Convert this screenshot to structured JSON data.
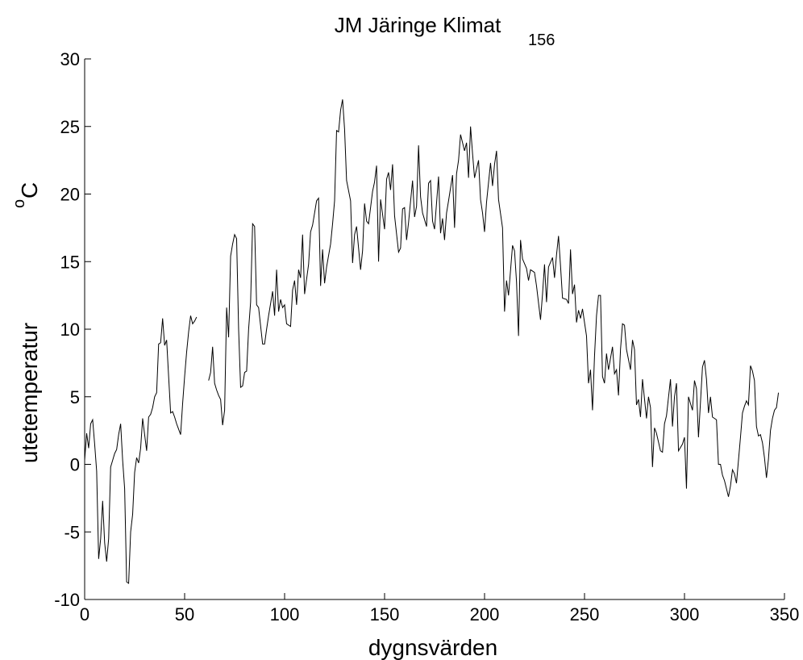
{
  "chart_data": {
    "type": "line",
    "title": "JM Järinge  Klimat",
    "title_subscript": "156",
    "xlabel": "dygnsvärden",
    "ylabel": "utetemperatur",
    "ylabel_unit_superscript": "o",
    "ylabel_unit": "C",
    "xlim": [
      0,
      350
    ],
    "xticks": [
      0,
      50,
      100,
      150,
      200,
      250,
      300,
      350
    ],
    "ylim": [
      -10,
      30
    ],
    "yticks": [
      -10,
      -5,
      0,
      5,
      10,
      15,
      20,
      25,
      30
    ],
    "grid": false,
    "x": [
      0,
      1,
      2,
      3,
      4,
      5,
      6,
      7,
      8,
      9,
      10,
      11,
      12,
      13,
      14,
      15,
      16,
      17,
      18,
      19,
      20,
      21,
      22,
      23,
      24,
      25,
      26,
      27,
      28,
      29,
      30,
      31,
      32,
      33,
      34,
      35,
      36,
      37,
      38,
      39,
      40,
      41,
      42,
      43,
      44,
      45,
      46,
      47,
      48,
      49,
      50,
      51,
      52,
      53,
      54,
      55,
      56,
      57,
      58,
      59,
      60,
      61,
      62,
      63,
      64,
      65,
      66,
      67,
      68,
      69,
      70,
      71,
      72,
      73,
      74,
      75,
      76,
      77,
      78,
      79,
      80,
      81,
      82,
      83,
      84,
      85,
      86,
      87,
      89,
      90,
      91,
      92,
      94,
      95,
      96,
      97,
      98,
      99,
      100,
      101,
      103,
      104,
      105,
      106,
      107,
      108,
      109,
      110,
      112,
      113,
      114,
      116,
      117,
      118,
      119,
      120,
      121,
      123,
      124,
      125,
      126,
      127,
      128,
      129,
      130,
      131,
      133,
      134,
      135,
      136,
      138,
      139,
      140,
      141,
      142,
      144,
      145,
      146,
      147,
      148,
      150,
      151,
      152,
      153,
      154,
      155,
      157,
      158,
      159,
      160,
      161,
      162,
      164,
      165,
      166,
      167,
      168,
      169,
      171,
      172,
      173,
      174,
      175,
      177,
      178,
      179,
      180,
      181,
      182,
      184,
      185,
      186,
      187,
      188,
      190,
      191,
      192,
      193,
      194,
      195,
      197,
      198,
      199,
      200,
      201,
      203,
      204,
      205,
      206,
      207,
      209,
      210,
      211,
      212,
      214,
      215,
      216,
      217,
      218,
      219,
      221,
      222,
      223,
      224,
      225,
      226,
      228,
      229,
      230,
      231,
      232,
      234,
      235,
      236,
      237,
      238,
      239,
      241,
      242,
      243,
      244,
      245,
      246,
      247,
      248,
      249,
      251,
      252,
      253,
      254,
      255,
      256,
      257,
      258,
      259,
      260,
      261,
      262,
      264,
      265,
      266,
      267,
      268,
      269,
      270,
      271,
      273,
      274,
      275,
      276,
      277,
      278,
      279,
      281,
      282,
      283,
      284,
      285,
      286,
      288,
      289,
      290,
      291,
      293,
      294,
      295,
      296,
      297,
      299,
      300,
      301,
      302,
      304,
      305,
      306,
      307,
      309,
      310,
      311,
      312,
      313,
      314,
      316,
      317,
      318,
      319,
      320,
      321,
      322,
      323,
      324,
      325,
      326,
      328,
      329,
      330,
      331,
      332,
      333,
      334,
      335,
      336,
      337,
      338,
      339,
      340,
      341,
      342,
      343,
      344,
      345,
      346,
      347
    ],
    "series": [
      {
        "color": "#000000",
        "values": [
          0.3,
          2.3,
          1.2,
          3.0,
          3.3,
          1.5,
          -0.5,
          -7.0,
          -5.5,
          -2.7,
          -5.8,
          -7.2,
          -5.5,
          -0.2,
          0.3,
          0.8,
          1.1,
          2.2,
          3.0,
          0.3,
          -1.8,
          -8.7,
          -8.8,
          -5.0,
          -3.7,
          -0.6,
          0.5,
          0.1,
          1.2,
          3.4,
          2.2,
          1.0,
          3.5,
          3.7,
          4.2,
          5.0,
          5.3,
          8.9,
          9.0,
          10.8,
          8.8,
          9.2,
          6.5,
          3.8,
          3.9,
          3.5,
          3.0,
          2.6,
          2.2,
          4.5,
          6.5,
          8.3,
          9.8,
          11.0,
          10.4,
          10.6,
          10.9,
          null,
          null,
          null,
          null,
          null,
          6.2,
          6.8,
          8.7,
          6.0,
          5.5,
          5.1,
          4.8,
          2.9,
          4.0,
          11.6,
          9.4,
          15.4,
          16.3,
          17.0,
          16.7,
          10.0,
          5.7,
          5.8,
          6.8,
          6.9,
          10.0,
          12.0,
          17.8,
          17.6,
          11.8,
          11.6,
          8.9,
          8.9,
          10.0,
          11.0,
          12.8,
          11.0,
          14.4,
          11.3,
          12.2,
          11.6,
          11.8,
          10.4,
          10.2,
          12.9,
          13.6,
          11.8,
          14.4,
          13.8,
          17.0,
          12.6,
          14.8,
          17.2,
          17.7,
          19.5,
          19.7,
          13.2,
          15.9,
          13.4,
          14.6,
          16.3,
          17.8,
          19.5,
          24.7,
          24.6,
          26.2,
          27.0,
          24.8,
          21.0,
          19.5,
          14.9,
          17.0,
          17.6,
          14.4,
          15.8,
          19.3,
          18.0,
          17.8,
          20.2,
          20.9,
          22.1,
          15.0,
          19.6,
          17.4,
          21.1,
          21.6,
          20.3,
          22.2,
          18.4,
          15.7,
          16.0,
          18.9,
          19.0,
          16.6,
          17.9,
          21.0,
          18.3,
          19.1,
          23.6,
          19.8,
          18.6,
          17.6,
          20.8,
          21.0,
          18.0,
          17.4,
          21.3,
          17.1,
          18.2,
          16.6,
          18.6,
          19.5,
          21.4,
          17.5,
          21.5,
          22.5,
          24.4,
          23.2,
          23.8,
          21.2,
          25.0,
          23.0,
          21.2,
          22.5,
          19.6,
          18.6,
          17.2,
          19.4,
          22.3,
          20.6,
          22.2,
          23.2,
          19.6,
          17.5,
          11.3,
          13.6,
          12.5,
          16.2,
          15.8,
          13.5,
          9.5,
          16.6,
          15.2,
          14.5,
          13.6,
          14.4,
          14.3,
          14.2,
          13.2,
          10.7,
          12.6,
          14.8,
          12.0,
          14.6,
          15.3,
          13.8,
          15.5,
          16.9,
          14.7,
          12.3,
          12.2,
          11.9,
          15.9,
          12.6,
          13.3,
          10.5,
          11.4,
          10.8,
          11.5,
          9.5,
          6.0,
          7.0,
          4.0,
          8.0,
          11.0,
          12.5,
          12.5,
          6.5,
          6.0,
          8.2,
          7.0,
          8.7,
          6.7,
          7.0,
          5.1,
          8.5,
          10.4,
          10.3,
          8.5,
          7.0,
          9.2,
          8.5,
          4.4,
          4.8,
          3.5,
          6.3,
          3.4,
          5.0,
          4.2,
          -0.2,
          2.7,
          2.3,
          1.0,
          0.9,
          3.0,
          3.6,
          6.3,
          2.8,
          5.0,
          6.0,
          1.0,
          1.5,
          2.0,
          -1.8,
          5.0,
          4.0,
          6.2,
          5.6,
          2.0,
          7.2,
          7.7,
          6.3,
          3.8,
          5.0,
          3.5,
          3.3,
          0.0,
          0.0,
          -0.8,
          -1.2,
          -1.8,
          -2.4,
          -1.6,
          -0.4,
          -0.7,
          -1.4,
          2.0,
          3.8,
          4.3,
          4.7,
          4.4,
          7.3,
          6.9,
          6.2,
          2.8,
          2.1,
          2.2,
          1.6,
          0.5,
          -1.0,
          0.4,
          2.5,
          3.4,
          4.0,
          4.2,
          5.3
        ]
      }
    ]
  }
}
